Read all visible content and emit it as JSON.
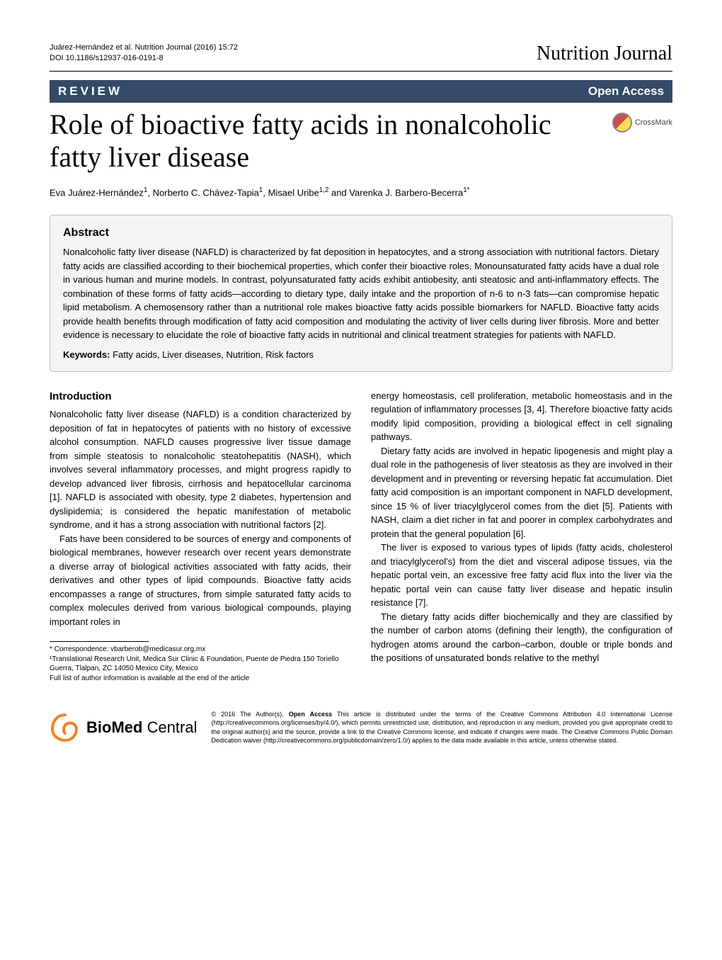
{
  "header": {
    "citation": "Juárez-Hernández et al. Nutrition Journal (2016) 15:72",
    "doi": "DOI 10.1186/s12937-016-0191-8",
    "journal": "Nutrition Journal"
  },
  "banner": {
    "review": "REVIEW",
    "open_access": "Open Access"
  },
  "title": "Role of bioactive fatty acids in nonalcoholic fatty liver disease",
  "crossmark": "CrossMark",
  "authors_html": "Eva Juárez-Hernández<sup>1</sup>, Norberto C. Chávez-Tapia<sup>1</sup>, Misael Uribe<sup>1,2</sup> and Varenka J. Barbero-Becerra<sup>1*</sup>",
  "abstract": {
    "heading": "Abstract",
    "text": "Nonalcoholic fatty liver disease (NAFLD) is characterized by fat deposition in hepatocytes, and a strong association with nutritional factors. Dietary fatty acids are classified according to their biochemical properties, which confer their bioactive roles. Monounsaturated fatty acids have a dual role in various human and murine models. In contrast, polyunsaturated fatty acids exhibit antiobesity, anti steatosic and anti-inflammatory effects. The combination of these forms of fatty acids—according to dietary type, daily intake and the proportion of n-6 to n-3 fats—can compromise hepatic lipid metabolism. A chemosensory rather than a nutritional role makes bioactive fatty acids possible biomarkers for NAFLD. Bioactive fatty acids provide health benefits through modification of fatty acid composition and modulating the activity of liver cells during liver fibrosis. More and better evidence is necessary to elucidate the role of bioactive fatty acids in nutritional and clinical treatment strategies for patients with NAFLD.",
    "keywords_label": "Keywords:",
    "keywords": "Fatty acids, Liver diseases, Nutrition, Risk factors"
  },
  "intro": {
    "heading": "Introduction",
    "left_p1": "Nonalcoholic fatty liver disease (NAFLD) is a condition characterized by deposition of fat in hepatocytes of patients with no history of excessive alcohol consumption. NAFLD causes progressive liver tissue damage from simple steatosis to nonalcoholic steatohepatitis (NASH), which involves several inflammatory processes, and might progress rapidly to develop advanced liver fibrosis, cirrhosis and hepatocellular carcinoma [1]. NAFLD is associated with obesity, type 2 diabetes, hypertension and dyslipidemia; is considered the hepatic manifestation of metabolic syndrome, and it has a strong association with nutritional factors [2].",
    "left_p2": "Fats have been considered to be sources of energy and components of biological membranes, however research over recent years demonstrate a diverse array of biological activities associated with fatty acids, their derivatives and other types of lipid compounds. Bioactive fatty acids encompasses a range of structures, from simple saturated fatty acids to complex molecules derived from various biological compounds, playing important roles in",
    "right_p1": "energy homeostasis, cell proliferation, metabolic homeostasis and in the regulation of inflammatory processes [3, 4]. Therefore bioactive fatty acids modify lipid composition, providing a biological effect in cell signaling pathways.",
    "right_p2": "Dietary fatty acids are involved in hepatic lipogenesis and might play a dual role in the pathogenesis of liver steatosis as they are involved in their development and in preventing or reversing hepatic fat accumulation. Diet fatty acid composition is an important component in NAFLD development, since 15 % of liver triacylglycerol comes from the diet [5]. Patients with NASH, claim a diet richer in fat and poorer in complex carbohydrates and protein that the general population [6].",
    "right_p3": "The liver is exposed to various types of lipids (fatty acids, cholesterol and triacylglycerol's) from the diet and visceral adipose tissues, via the hepatic portal vein, an excessive free fatty acid flux into the liver via the hepatic portal vein can cause fatty liver disease and hepatic insulin resistance [7].",
    "right_p4": "The dietary fatty acids differ biochemically and they are classified by the number of carbon atoms (defining their length), the configuration of hydrogen atoms around the carbon–carbon, double or triple bonds and the positions of unsaturated bonds relative to the methyl"
  },
  "footnotes": {
    "correspondence": "* Correspondence: vbarberob@medicasur.org.mx",
    "affiliation": "¹Translational Research Unit, Medica Sur Clinic & Foundation, Puente de Piedra 150 Toriello Guerra, Tlalpan, ZC 14050 Mexico City, Mexico",
    "fullauthor": "Full list of author information is available at the end of the article"
  },
  "footer": {
    "logo_bold": "BioMed",
    "logo_light": " Central",
    "license_html": "© 2016 The Author(s). <b>Open Access</b> This article is distributed under the terms of the Creative Commons Attribution 4.0 International License (http://creativecommons.org/licenses/by/4.0/), which permits unrestricted use, distribution, and reproduction in any medium, provided you give appropriate credit to the original author(s) and the source, provide a link to the Creative Commons license, and indicate if changes were made. The Creative Commons Public Domain Dedication waiver (http://creativecommons.org/publicdomain/zero/1.0/) applies to the data made available in this article, unless otherwise stated."
  },
  "colors": {
    "banner_bg": "#354a67",
    "abstract_bg": "#f4f4f4",
    "border": "#bbbbbb",
    "text": "#000000",
    "logo_orange": "#f58220"
  },
  "typography": {
    "title_fontsize": 40,
    "journal_fontsize": 28,
    "body_fontsize": 13,
    "footnote_fontsize": 10,
    "license_fontsize": 9
  }
}
